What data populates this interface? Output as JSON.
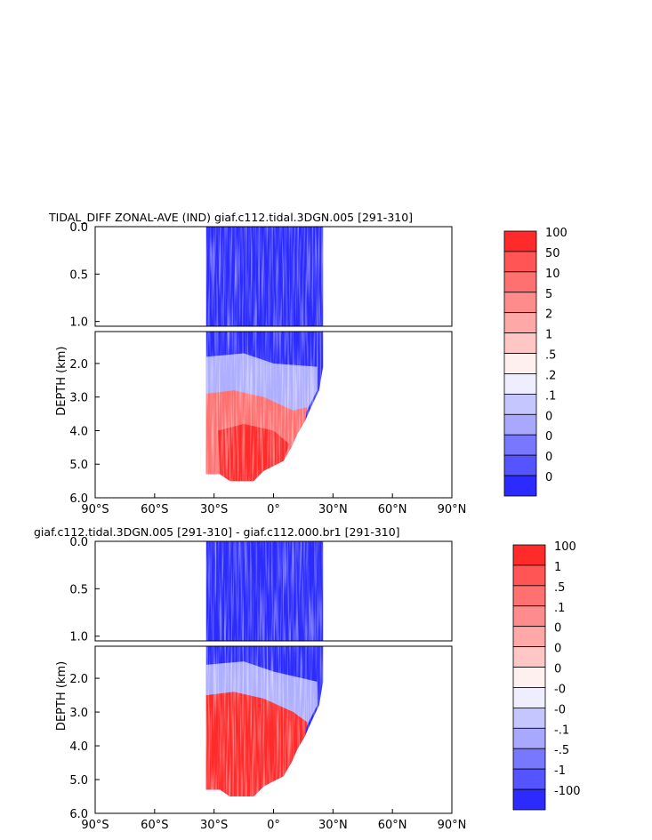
{
  "chart_data": [
    {
      "type": "heatmap",
      "title": "TIDAL_DIFF ZONAL-AVE (IND) giaf.c112.tidal.3DGN.005 [291-310]",
      "ylabel": "DEPTH (km)",
      "x_ticks": [
        "90°S",
        "60°S",
        "30°S",
        "0°",
        "30°N",
        "60°N",
        "90°N"
      ],
      "upper_y_ticks": [
        "0.0",
        "0.5",
        "1.0"
      ],
      "lower_y_ticks": [
        "2.0",
        "3.0",
        "4.0",
        "5.0",
        "6.0"
      ],
      "xlim": [
        -90,
        90
      ],
      "ylim_upper": [
        0,
        1.05
      ],
      "ylim_lower": [
        1.05,
        6.0
      ],
      "colorbar": {
        "labels": [
          "100",
          "50",
          "10",
          "5",
          "2",
          "1",
          ".5",
          ".2",
          ".1",
          "0",
          "0",
          "0",
          "0"
        ],
        "colors": [
          "#ff2b2b",
          "#ff5555",
          "#ff7070",
          "#ff8c8c",
          "#ffa8a8",
          "#ffc6c6",
          "#fff0f0",
          "#eeeeff",
          "#c6c6ff",
          "#a8a8ff",
          "#7878ff",
          "#5555ff",
          "#2b2bff"
        ]
      }
    },
    {
      "type": "heatmap",
      "title": "giaf.c112.tidal.3DGN.005 [291-310] - giaf.c112.000.br1 [291-310]",
      "ylabel": "DEPTH (km)",
      "x_ticks": [
        "90°S",
        "60°S",
        "30°S",
        "0°",
        "30°N",
        "60°N",
        "90°N"
      ],
      "upper_y_ticks": [
        "0.0",
        "0.5",
        "1.0"
      ],
      "lower_y_ticks": [
        "2.0",
        "3.0",
        "4.0",
        "5.0",
        "6.0"
      ],
      "xlim": [
        -90,
        90
      ],
      "ylim_upper": [
        0,
        1.05
      ],
      "ylim_lower": [
        1.05,
        6.0
      ],
      "colorbar": {
        "labels": [
          "100",
          "1",
          ".5",
          ".1",
          "0",
          "0",
          "0",
          "-0",
          "-0",
          "-.1",
          "-.5",
          "-1",
          "-100"
        ],
        "colors": [
          "#ff2b2b",
          "#ff5555",
          "#ff7070",
          "#ff8c8c",
          "#ffa8a8",
          "#ffc6c6",
          "#fff0f0",
          "#eeeeff",
          "#c6c6ff",
          "#a8a8ff",
          "#7878ff",
          "#5555ff",
          "#2b2bff"
        ]
      }
    }
  ]
}
